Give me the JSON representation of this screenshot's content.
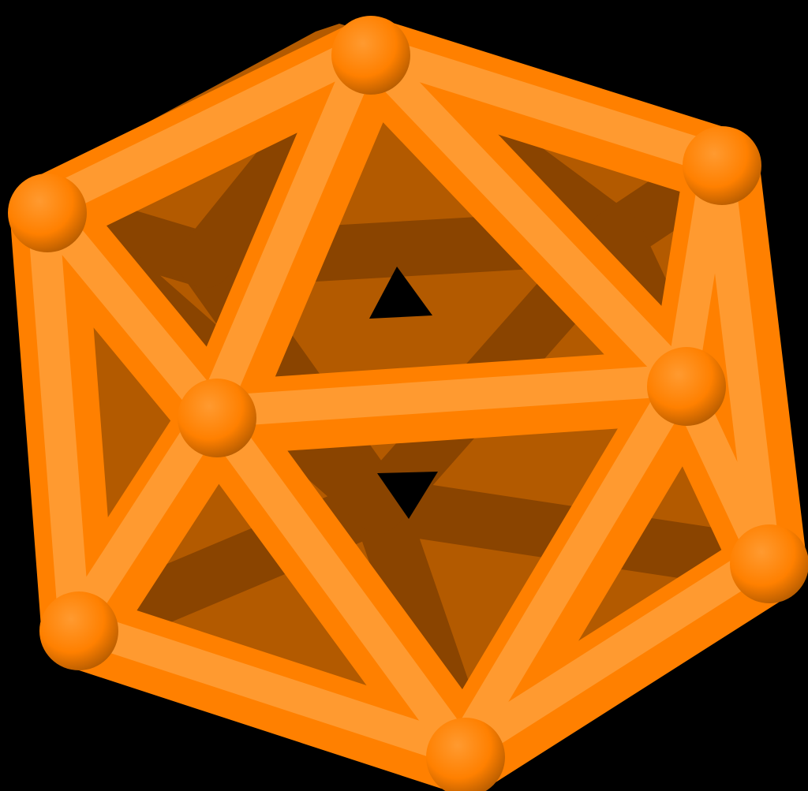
{
  "scene": {
    "subject": "icosahedron-wireframe",
    "background_color": "#000000",
    "base_color": "#FF8000",
    "shadow_color": "#B35A00",
    "deep_shadow_color": "#8A4400",
    "highlight_color": "#FF9A30"
  }
}
